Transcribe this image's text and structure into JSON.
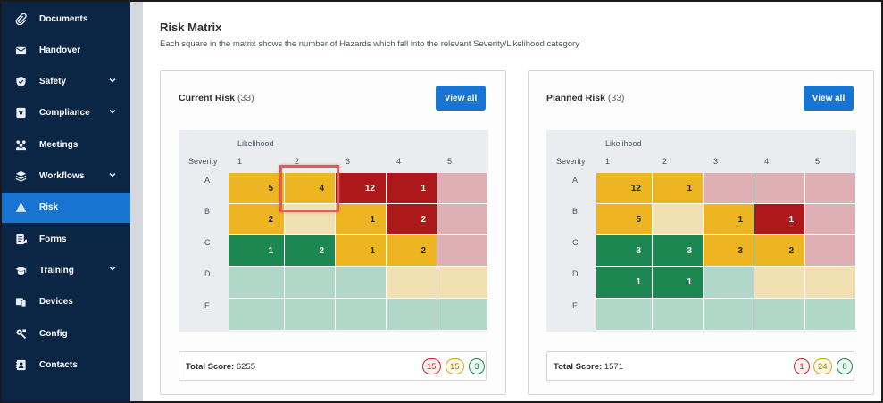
{
  "sidebar": {
    "items": [
      {
        "label": "Documents",
        "icon": "paperclip-icon",
        "has_submenu": false
      },
      {
        "label": "Handover",
        "icon": "envelope-icon",
        "has_submenu": false
      },
      {
        "label": "Safety",
        "icon": "shield-icon",
        "has_submenu": true
      },
      {
        "label": "Compliance",
        "icon": "badge-star-icon",
        "has_submenu": true
      },
      {
        "label": "Meetings",
        "icon": "people-icon",
        "has_submenu": false
      },
      {
        "label": "Workflows",
        "icon": "layers-icon",
        "has_submenu": true
      },
      {
        "label": "Risk",
        "icon": "warning-triangle-icon",
        "has_submenu": false,
        "active": true
      },
      {
        "label": "Forms",
        "icon": "form-pen-icon",
        "has_submenu": false
      },
      {
        "label": "Training",
        "icon": "graduation-cap-icon",
        "has_submenu": true
      },
      {
        "label": "Devices",
        "icon": "devices-icon",
        "has_submenu": false
      },
      {
        "label": "Config",
        "icon": "config-gear-icon",
        "has_submenu": false
      },
      {
        "label": "Contacts",
        "icon": "contacts-book-icon",
        "has_submenu": false
      }
    ]
  },
  "main": {
    "title": "Risk Matrix",
    "description": "Each square in the matrix shows the number of Hazards which fall into the relevant Severity/Likelihood category"
  },
  "colors": {
    "sidebar_bg": "#0b2545",
    "accent": "#1874d0",
    "level0_light_green": "#b0d7c8",
    "level1_green": "#1d8752",
    "level2_light_amber": "#f0e0b2",
    "level3_amber": "#edb522",
    "level4_light_red": "#dfb0b3",
    "level5_red": "#ad191a",
    "highlight": "#e35a5a"
  },
  "cards": [
    {
      "title": "Current Risk",
      "count": "(33)",
      "button_label": "View all",
      "likelihood_label": "Likelihood",
      "severity_label": "Severity",
      "columns": [
        "1",
        "2",
        "3",
        "4",
        "5"
      ],
      "rows": [
        "A",
        "B",
        "C",
        "D",
        "E"
      ],
      "cells": [
        [
          {
            "v": "5",
            "c": 3
          },
          {
            "v": "4",
            "c": 3
          },
          {
            "v": "12",
            "c": 5
          },
          {
            "v": "1",
            "c": 5
          },
          {
            "v": "",
            "c": 4
          }
        ],
        [
          {
            "v": "2",
            "c": 3
          },
          {
            "v": "",
            "c": 2
          },
          {
            "v": "1",
            "c": 3
          },
          {
            "v": "2",
            "c": 5
          },
          {
            "v": "",
            "c": 4
          }
        ],
        [
          {
            "v": "1",
            "c": 1
          },
          {
            "v": "2",
            "c": 1
          },
          {
            "v": "1",
            "c": 3
          },
          {
            "v": "2",
            "c": 3
          },
          {
            "v": "",
            "c": 4
          }
        ],
        [
          {
            "v": "",
            "c": 0
          },
          {
            "v": "",
            "c": 0
          },
          {
            "v": "",
            "c": 0
          },
          {
            "v": "",
            "c": 2
          },
          {
            "v": "",
            "c": 2
          }
        ],
        [
          {
            "v": "",
            "c": 0
          },
          {
            "v": "",
            "c": 0
          },
          {
            "v": "",
            "c": 0
          },
          {
            "v": "",
            "c": 0
          },
          {
            "v": "",
            "c": 0
          }
        ]
      ],
      "highlight": {
        "row": 0,
        "col": 1
      },
      "score_label": "Total Score:",
      "score_value": "6255",
      "badges": [
        {
          "v": "15",
          "kind": "red"
        },
        {
          "v": "15",
          "kind": "amber"
        },
        {
          "v": "3",
          "kind": "green"
        }
      ]
    },
    {
      "title": "Planned Risk",
      "count": "(33)",
      "button_label": "View all",
      "likelihood_label": "Likelihood",
      "severity_label": "Severity",
      "columns": [
        "1",
        "2",
        "3",
        "4",
        "5"
      ],
      "rows": [
        "A",
        "B",
        "C",
        "D",
        "E"
      ],
      "cells": [
        [
          {
            "v": "12",
            "c": 3
          },
          {
            "v": "1",
            "c": 3
          },
          {
            "v": "",
            "c": 4
          },
          {
            "v": "",
            "c": 4
          },
          {
            "v": "",
            "c": 4
          }
        ],
        [
          {
            "v": "5",
            "c": 3
          },
          {
            "v": "",
            "c": 2
          },
          {
            "v": "1",
            "c": 3
          },
          {
            "v": "1",
            "c": 5
          },
          {
            "v": "",
            "c": 4
          }
        ],
        [
          {
            "v": "3",
            "c": 1
          },
          {
            "v": "3",
            "c": 1
          },
          {
            "v": "3",
            "c": 3
          },
          {
            "v": "2",
            "c": 3
          },
          {
            "v": "",
            "c": 4
          }
        ],
        [
          {
            "v": "1",
            "c": 1
          },
          {
            "v": "1",
            "c": 1
          },
          {
            "v": "",
            "c": 0
          },
          {
            "v": "",
            "c": 2
          },
          {
            "v": "",
            "c": 2
          }
        ],
        [
          {
            "v": "",
            "c": 0
          },
          {
            "v": "",
            "c": 0
          },
          {
            "v": "",
            "c": 0
          },
          {
            "v": "",
            "c": 0
          },
          {
            "v": "",
            "c": 0
          }
        ]
      ],
      "score_label": "Total Score:",
      "score_value": "1571",
      "badges": [
        {
          "v": "1",
          "kind": "red"
        },
        {
          "v": "24",
          "kind": "amber"
        },
        {
          "v": "8",
          "kind": "green"
        }
      ]
    }
  ]
}
